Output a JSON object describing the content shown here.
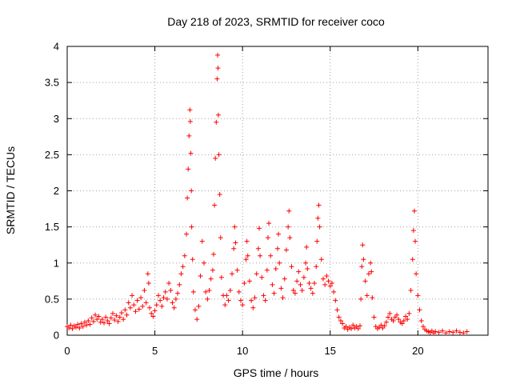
{
  "chart_data": {
    "type": "scatter",
    "title": "Day 218 of 2023, SRMTID for receiver coco",
    "xlabel": "GPS time / hours",
    "ylabel": "SRMTID / TECUs",
    "xlim": [
      0,
      24
    ],
    "ylim": [
      0,
      4
    ],
    "xticks": [
      0,
      5,
      10,
      15,
      20
    ],
    "yticks": [
      0,
      0.5,
      1,
      1.5,
      2,
      2.5,
      3,
      3.5,
      4
    ],
    "xtick_labels": [
      "0",
      "5",
      "10",
      "15",
      "20"
    ],
    "ytick_labels": [
      "0",
      "0.5",
      "1",
      "1.5",
      "2",
      "2.5",
      "3",
      "3.5",
      "4"
    ],
    "grid": true,
    "marker": "+",
    "marker_color": "#ff0000",
    "series": [
      {
        "name": "SRMTID",
        "points": [
          [
            0.0,
            0.12
          ],
          [
            0.1,
            0.1
          ],
          [
            0.2,
            0.14
          ],
          [
            0.3,
            0.09
          ],
          [
            0.4,
            0.13
          ],
          [
            0.5,
            0.11
          ],
          [
            0.6,
            0.15
          ],
          [
            0.7,
            0.1
          ],
          [
            0.8,
            0.16
          ],
          [
            0.9,
            0.12
          ],
          [
            1.0,
            0.18
          ],
          [
            1.1,
            0.14
          ],
          [
            1.2,
            0.2
          ],
          [
            1.3,
            0.15
          ],
          [
            1.4,
            0.24
          ],
          [
            1.5,
            0.19
          ],
          [
            1.6,
            0.28
          ],
          [
            1.7,
            0.22
          ],
          [
            1.8,
            0.26
          ],
          [
            1.9,
            0.18
          ],
          [
            2.0,
            0.22
          ],
          [
            2.1,
            0.17
          ],
          [
            2.2,
            0.25
          ],
          [
            2.3,
            0.2
          ],
          [
            2.4,
            0.16
          ],
          [
            2.5,
            0.24
          ],
          [
            2.6,
            0.3
          ],
          [
            2.7,
            0.21
          ],
          [
            2.8,
            0.27
          ],
          [
            2.9,
            0.19
          ],
          [
            3.0,
            0.25
          ],
          [
            3.1,
            0.31
          ],
          [
            3.2,
            0.22
          ],
          [
            3.3,
            0.35
          ],
          [
            3.4,
            0.28
          ],
          [
            3.5,
            0.45
          ],
          [
            3.6,
            0.38
          ],
          [
            3.7,
            0.55
          ],
          [
            3.8,
            0.42
          ],
          [
            3.9,
            0.33
          ],
          [
            4.0,
            0.48
          ],
          [
            4.1,
            0.36
          ],
          [
            4.2,
            0.52
          ],
          [
            4.3,
            0.4
          ],
          [
            4.4,
            0.62
          ],
          [
            4.5,
            0.45
          ],
          [
            4.6,
            0.85
          ],
          [
            4.65,
            0.72
          ],
          [
            4.7,
            0.38
          ],
          [
            4.8,
            0.3
          ],
          [
            4.9,
            0.26
          ],
          [
            5.0,
            0.34
          ],
          [
            5.1,
            0.42
          ],
          [
            5.2,
            0.55
          ],
          [
            5.3,
            0.48
          ],
          [
            5.4,
            0.4
          ],
          [
            5.5,
            0.52
          ],
          [
            5.6,
            0.6
          ],
          [
            5.7,
            0.5
          ],
          [
            5.8,
            0.72
          ],
          [
            5.9,
            0.62
          ],
          [
            6.0,
            0.45
          ],
          [
            6.1,
            0.38
          ],
          [
            6.2,
            0.5
          ],
          [
            6.3,
            0.58
          ],
          [
            6.4,
            0.7
          ],
          [
            6.5,
            0.85
          ],
          [
            6.6,
            0.95
          ],
          [
            6.7,
            1.1
          ],
          [
            6.8,
            1.4
          ],
          [
            6.85,
            1.9
          ],
          [
            6.9,
            2.3
          ],
          [
            6.95,
            2.76
          ],
          [
            7.0,
            3.12
          ],
          [
            7.02,
            2.96
          ],
          [
            7.05,
            2.52
          ],
          [
            7.08,
            2.0
          ],
          [
            7.1,
            1.5
          ],
          [
            7.15,
            1.05
          ],
          [
            7.2,
            0.6
          ],
          [
            7.3,
            0.35
          ],
          [
            7.4,
            0.22
          ],
          [
            7.5,
            0.4
          ],
          [
            7.6,
            0.82
          ],
          [
            7.7,
            1.3
          ],
          [
            7.8,
            1.0
          ],
          [
            7.9,
            0.6
          ],
          [
            8.0,
            0.5
          ],
          [
            8.1,
            0.62
          ],
          [
            8.2,
            0.78
          ],
          [
            8.3,
            0.9
          ],
          [
            8.35,
            1.12
          ],
          [
            8.4,
            1.8
          ],
          [
            8.45,
            2.45
          ],
          [
            8.5,
            2.95
          ],
          [
            8.55,
            3.55
          ],
          [
            8.58,
            3.88
          ],
          [
            8.6,
            3.7
          ],
          [
            8.62,
            3.05
          ],
          [
            8.65,
            2.5
          ],
          [
            8.7,
            1.95
          ],
          [
            8.75,
            1.35
          ],
          [
            8.8,
            0.8
          ],
          [
            8.9,
            0.55
          ],
          [
            9.0,
            0.42
          ],
          [
            9.1,
            0.55
          ],
          [
            9.2,
            0.48
          ],
          [
            9.3,
            0.62
          ],
          [
            9.4,
            0.85
          ],
          [
            9.5,
            1.2
          ],
          [
            9.55,
            1.5
          ],
          [
            9.6,
            1.28
          ],
          [
            9.7,
            0.9
          ],
          [
            9.8,
            0.6
          ],
          [
            9.9,
            0.48
          ],
          [
            10.0,
            0.42
          ],
          [
            10.1,
            0.72
          ],
          [
            10.2,
            1.05
          ],
          [
            10.25,
            1.3
          ],
          [
            10.3,
            1.1
          ],
          [
            10.4,
            0.75
          ],
          [
            10.5,
            0.48
          ],
          [
            10.6,
            0.38
          ],
          [
            10.7,
            0.52
          ],
          [
            10.8,
            0.85
          ],
          [
            10.9,
            1.2
          ],
          [
            10.95,
            1.48
          ],
          [
            11.0,
            1.1
          ],
          [
            11.1,
            0.8
          ],
          [
            11.2,
            0.55
          ],
          [
            11.3,
            0.48
          ],
          [
            11.4,
            0.9
          ],
          [
            11.45,
            1.35
          ],
          [
            11.5,
            1.55
          ],
          [
            11.6,
            1.1
          ],
          [
            11.7,
            0.7
          ],
          [
            11.8,
            0.58
          ],
          [
            11.9,
            0.92
          ],
          [
            12.0,
            1.2
          ],
          [
            12.05,
            1.4
          ],
          [
            12.1,
            1.0
          ],
          [
            12.2,
            0.65
          ],
          [
            12.3,
            0.52
          ],
          [
            12.4,
            0.78
          ],
          [
            12.5,
            1.18
          ],
          [
            12.6,
            1.5
          ],
          [
            12.65,
            1.72
          ],
          [
            12.7,
            1.35
          ],
          [
            12.8,
            0.95
          ],
          [
            12.9,
            0.62
          ],
          [
            13.0,
            0.58
          ],
          [
            13.1,
            0.75
          ],
          [
            13.2,
            0.88
          ],
          [
            13.3,
            0.7
          ],
          [
            13.4,
            0.62
          ],
          [
            13.5,
            0.8
          ],
          [
            13.6,
            1.0
          ],
          [
            13.65,
            1.22
          ],
          [
            13.7,
            0.92
          ],
          [
            13.8,
            0.72
          ],
          [
            13.9,
            0.65
          ],
          [
            14.0,
            0.58
          ],
          [
            14.1,
            0.72
          ],
          [
            14.2,
            0.95
          ],
          [
            14.25,
            1.3
          ],
          [
            14.3,
            1.62
          ],
          [
            14.35,
            1.8
          ],
          [
            14.4,
            1.5
          ],
          [
            14.5,
            1.05
          ],
          [
            14.6,
            0.78
          ],
          [
            14.7,
            0.7
          ],
          [
            14.8,
            0.82
          ],
          [
            14.9,
            0.75
          ],
          [
            15.0,
            0.68
          ],
          [
            15.1,
            0.72
          ],
          [
            15.2,
            0.6
          ],
          [
            15.3,
            0.48
          ],
          [
            15.4,
            0.35
          ],
          [
            15.5,
            0.25
          ],
          [
            15.6,
            0.2
          ],
          [
            15.7,
            0.16
          ],
          [
            15.8,
            0.1
          ],
          [
            15.9,
            0.12
          ],
          [
            16.0,
            0.08
          ],
          [
            16.1,
            0.11
          ],
          [
            16.2,
            0.09
          ],
          [
            16.3,
            0.14
          ],
          [
            16.4,
            0.1
          ],
          [
            16.5,
            0.12
          ],
          [
            16.6,
            0.09
          ],
          [
            16.7,
            0.13
          ],
          [
            16.75,
            0.5
          ],
          [
            16.8,
            0.95
          ],
          [
            16.85,
            1.25
          ],
          [
            16.9,
            1.05
          ],
          [
            17.0,
            0.75
          ],
          [
            17.1,
            0.55
          ],
          [
            17.2,
            0.85
          ],
          [
            17.3,
            1.0
          ],
          [
            17.35,
            0.88
          ],
          [
            17.4,
            0.52
          ],
          [
            17.5,
            0.25
          ],
          [
            17.6,
            0.12
          ],
          [
            17.7,
            0.09
          ],
          [
            17.8,
            0.11
          ],
          [
            17.9,
            0.14
          ],
          [
            18.0,
            0.1
          ],
          [
            18.1,
            0.13
          ],
          [
            18.2,
            0.18
          ],
          [
            18.3,
            0.25
          ],
          [
            18.4,
            0.3
          ],
          [
            18.5,
            0.22
          ],
          [
            18.6,
            0.2
          ],
          [
            18.7,
            0.25
          ],
          [
            18.8,
            0.28
          ],
          [
            18.9,
            0.22
          ],
          [
            19.0,
            0.18
          ],
          [
            19.1,
            0.16
          ],
          [
            19.2,
            0.2
          ],
          [
            19.3,
            0.26
          ],
          [
            19.4,
            0.22
          ],
          [
            19.5,
            0.3
          ],
          [
            19.6,
            0.62
          ],
          [
            19.7,
            1.05
          ],
          [
            19.75,
            1.45
          ],
          [
            19.8,
            1.72
          ],
          [
            19.85,
            1.3
          ],
          [
            19.9,
            0.85
          ],
          [
            20.0,
            0.55
          ],
          [
            20.1,
            0.35
          ],
          [
            20.2,
            0.2
          ],
          [
            20.3,
            0.12
          ],
          [
            20.4,
            0.08
          ],
          [
            20.5,
            0.06
          ],
          [
            20.6,
            0.05
          ],
          [
            20.7,
            0.04
          ],
          [
            20.8,
            0.06
          ],
          [
            20.9,
            0.03
          ],
          [
            21.0,
            0.05
          ],
          [
            21.2,
            0.04
          ],
          [
            21.4,
            0.06
          ],
          [
            21.6,
            0.03
          ],
          [
            21.8,
            0.05
          ],
          [
            22.0,
            0.04
          ],
          [
            22.2,
            0.06
          ],
          [
            22.4,
            0.04
          ],
          [
            22.6,
            0.03
          ],
          [
            22.8,
            0.05
          ]
        ]
      }
    ]
  }
}
